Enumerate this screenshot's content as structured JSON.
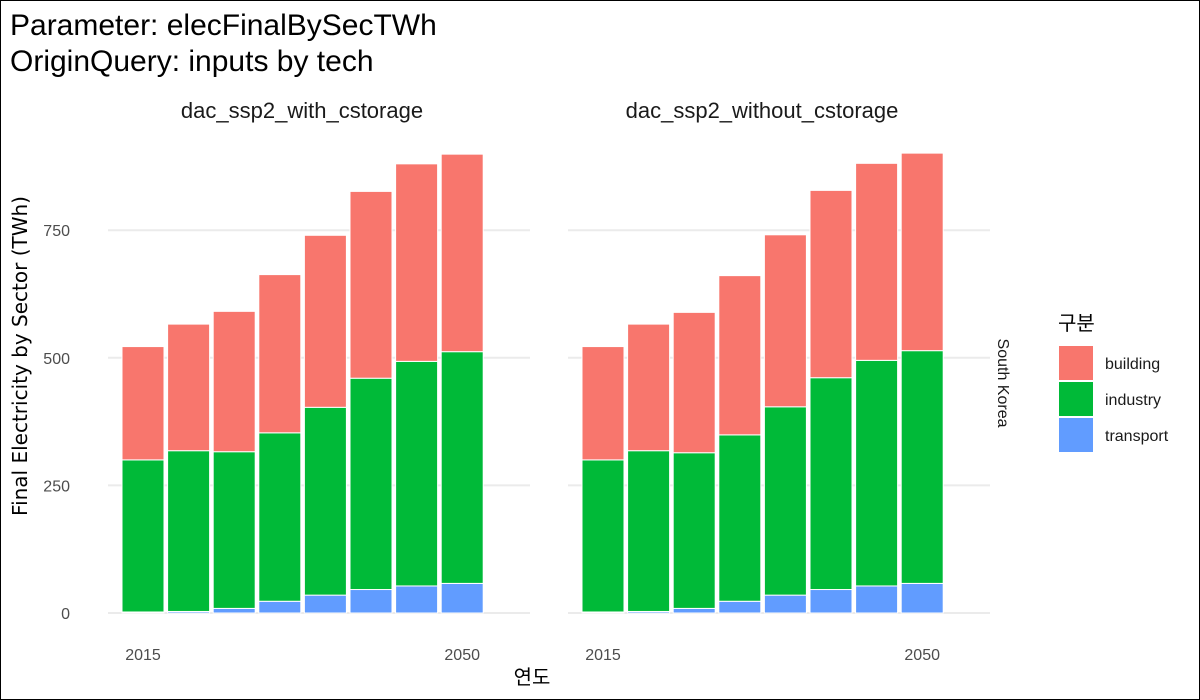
{
  "title_lines": [
    "Parameter: elecFinalBySecTWh",
    "OriginQuery: inputs by tech"
  ],
  "chart_data": {
    "type": "bar",
    "stacked": true,
    "facets": [
      "dac_ssp2_with_cstorage",
      "dac_ssp2_without_cstorage"
    ],
    "row_facet": "South Korea",
    "x": [
      2015,
      2020,
      2025,
      2030,
      2035,
      2040,
      2045,
      2050
    ],
    "x_tick_labels": [
      "2015",
      "2050"
    ],
    "xlabel": "연도",
    "ylabel": "Final Electricity by Sector (TWh)",
    "ylim": [
      0,
      900
    ],
    "y_ticks": [
      0,
      250,
      500,
      750
    ],
    "grid": true,
    "legend": {
      "title": "구분",
      "position": "right"
    },
    "series": [
      {
        "name": "transport",
        "color": "#619CFF",
        "values": [
          [
            2,
            3,
            9,
            23,
            35,
            46,
            53,
            58
          ],
          [
            2,
            3,
            9,
            23,
            35,
            46,
            53,
            58
          ]
        ]
      },
      {
        "name": "industry",
        "color": "#00BA38",
        "values": [
          [
            298,
            315,
            307,
            330,
            368,
            414,
            440,
            454
          ],
          [
            298,
            315,
            305,
            326,
            369,
            415,
            442,
            456
          ]
        ]
      },
      {
        "name": "building",
        "color": "#F8766D",
        "values": [
          [
            222,
            248,
            275,
            310,
            337,
            366,
            387,
            387
          ],
          [
            222,
            248,
            275,
            312,
            337,
            367,
            386,
            387
          ]
        ]
      }
    ]
  }
}
